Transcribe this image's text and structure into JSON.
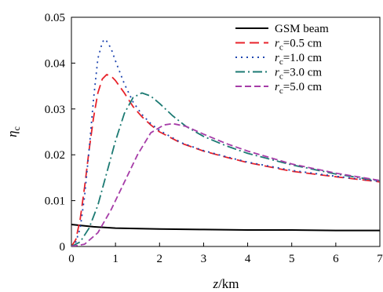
{
  "chart_data": {
    "type": "line",
    "xlabel": {
      "var": "z",
      "unit": "/km"
    },
    "ylabel": {
      "var": "η",
      "sub": "c"
    },
    "xlim": [
      0,
      7
    ],
    "ylim": [
      0,
      0.05
    ],
    "x_ticks": [
      "0",
      "1",
      "2",
      "3",
      "4",
      "5",
      "6",
      "7"
    ],
    "y_ticks": [
      "0",
      "0.01",
      "0.02",
      "0.03",
      "0.04",
      "0.05"
    ],
    "grid": false,
    "legend_position": "top-right",
    "series": [
      {
        "name": "GSM beam",
        "legend": {
          "plain": "GSM beam"
        },
        "color": "#000000",
        "dash": "",
        "points": [
          [
            0,
            0.0048
          ],
          [
            0.5,
            0.0043
          ],
          [
            1,
            0.004
          ],
          [
            2,
            0.0038
          ],
          [
            3,
            0.0037
          ],
          [
            4,
            0.0036
          ],
          [
            5,
            0.0036
          ],
          [
            6,
            0.0035
          ],
          [
            7,
            0.0035
          ]
        ]
      },
      {
        "name": "rc=0.5 cm",
        "legend": {
          "var": "r",
          "sub": "c",
          "rest": "=0.5 cm"
        },
        "color": "#e8232b",
        "dash": "12,6",
        "points": [
          [
            0,
            0
          ],
          [
            0.1,
            0.0015
          ],
          [
            0.2,
            0.006
          ],
          [
            0.3,
            0.013
          ],
          [
            0.4,
            0.021
          ],
          [
            0.5,
            0.028
          ],
          [
            0.6,
            0.0335
          ],
          [
            0.7,
            0.0365
          ],
          [
            0.8,
            0.0375
          ],
          [
            0.9,
            0.0372
          ],
          [
            1.0,
            0.0362
          ],
          [
            1.2,
            0.0335
          ],
          [
            1.4,
            0.0305
          ],
          [
            1.6,
            0.0283
          ],
          [
            1.8,
            0.0265
          ],
          [
            2.0,
            0.025
          ],
          [
            2.5,
            0.0225
          ],
          [
            3.0,
            0.0208
          ],
          [
            3.5,
            0.0195
          ],
          [
            4.0,
            0.0183
          ],
          [
            5.0,
            0.0164
          ],
          [
            6.0,
            0.0152
          ],
          [
            7.0,
            0.0141
          ]
        ]
      },
      {
        "name": "rc=1.0 cm",
        "legend": {
          "var": "r",
          "sub": "c",
          "rest": "=1.0 cm"
        },
        "color": "#2046b0",
        "dash": "2,5",
        "points": [
          [
            0,
            0
          ],
          [
            0.1,
            0.001
          ],
          [
            0.2,
            0.004
          ],
          [
            0.3,
            0.011
          ],
          [
            0.4,
            0.021
          ],
          [
            0.5,
            0.032
          ],
          [
            0.6,
            0.041
          ],
          [
            0.7,
            0.0445
          ],
          [
            0.75,
            0.0452
          ],
          [
            0.8,
            0.0448
          ],
          [
            0.9,
            0.0432
          ],
          [
            1.0,
            0.0405
          ],
          [
            1.2,
            0.0355
          ],
          [
            1.4,
            0.0315
          ],
          [
            1.6,
            0.0288
          ],
          [
            1.8,
            0.0268
          ],
          [
            2.0,
            0.0253
          ],
          [
            2.5,
            0.0226
          ],
          [
            3.0,
            0.0209
          ],
          [
            3.5,
            0.0196
          ],
          [
            4.0,
            0.0184
          ],
          [
            5.0,
            0.0166
          ],
          [
            6.0,
            0.0153
          ],
          [
            7.0,
            0.0142
          ]
        ]
      },
      {
        "name": "rc=3.0 cm",
        "legend": {
          "var": "r",
          "sub": "c",
          "rest": "=3.0 cm"
        },
        "color": "#1c7a73",
        "dash": "12,4,2,4",
        "points": [
          [
            0,
            0
          ],
          [
            0.2,
            0.001
          ],
          [
            0.4,
            0.004
          ],
          [
            0.6,
            0.009
          ],
          [
            0.8,
            0.016
          ],
          [
            1.0,
            0.023
          ],
          [
            1.2,
            0.029
          ],
          [
            1.4,
            0.0325
          ],
          [
            1.6,
            0.0335
          ],
          [
            1.8,
            0.0328
          ],
          [
            2.0,
            0.0312
          ],
          [
            2.3,
            0.0285
          ],
          [
            2.6,
            0.0262
          ],
          [
            3.0,
            0.024
          ],
          [
            3.5,
            0.022
          ],
          [
            4.0,
            0.0203
          ],
          [
            5.0,
            0.0178
          ],
          [
            6.0,
            0.0158
          ],
          [
            7.0,
            0.0143
          ]
        ]
      },
      {
        "name": "rc=5.0 cm",
        "legend": {
          "var": "r",
          "sub": "c",
          "rest": "=5.0 cm"
        },
        "color": "#a63da8",
        "dash": "8,4",
        "points": [
          [
            0,
            0
          ],
          [
            0.3,
            0.0005
          ],
          [
            0.6,
            0.003
          ],
          [
            0.9,
            0.008
          ],
          [
            1.2,
            0.014
          ],
          [
            1.5,
            0.02
          ],
          [
            1.8,
            0.0248
          ],
          [
            2.1,
            0.0265
          ],
          [
            2.3,
            0.0268
          ],
          [
            2.6,
            0.0262
          ],
          [
            3.0,
            0.0245
          ],
          [
            3.5,
            0.0225
          ],
          [
            4.0,
            0.0208
          ],
          [
            5.0,
            0.018
          ],
          [
            6.0,
            0.016
          ],
          [
            7.0,
            0.0144
          ]
        ]
      }
    ]
  }
}
